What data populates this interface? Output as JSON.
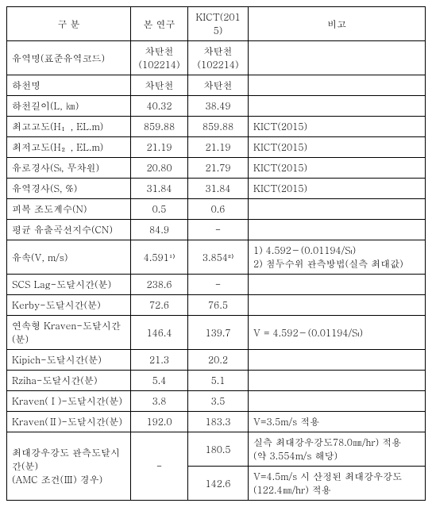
{
  "header": {
    "col1": "구    분",
    "col2": "본 연구",
    "col3": "KICT(2015)",
    "col4": "비고"
  },
  "rows": [
    {
      "label": "유역명(표준유역코드)",
      "v1": "차탄천\n(102214)",
      "v2": "차탄천\n(102214)",
      "note": ""
    },
    {
      "label": "하천명",
      "v1": "차탄천",
      "v2": "차탄천",
      "note": ""
    },
    {
      "label": "하천길이(L, ㎞)",
      "v1": "40.32",
      "v2": "38.49",
      "note": ""
    },
    {
      "label": "최고고도(H₁, EL.m)",
      "v1": "859.88",
      "v2": "859.88",
      "note": "KICT(2015)"
    },
    {
      "label": "최저고도(H₂, EL.m)",
      "v1": "21.19",
      "v2": "21.19",
      "note": "KICT(2015)"
    },
    {
      "label": "유로경사(Sₗ, 무차원)",
      "v1": "20.80",
      "v2": "21.79",
      "note": "KICT(2015)"
    },
    {
      "label": "유역경사(S, %)",
      "v1": "31.84",
      "v2": "31.84",
      "note": "KICT(2015)"
    },
    {
      "label": "피복 조도계수(N)",
      "v1": "0.5",
      "v2": "0.6",
      "note": ""
    },
    {
      "label": "평균 유출곡선지수(CN)",
      "v1": "84.9",
      "v2": "-",
      "note": ""
    },
    {
      "label": "유속(V, m/s)",
      "v1": "4.591¹⁾",
      "v2": "3.854²⁾",
      "note": "1) 4.592－(0.01194/Sₗ)\n2) 첨두수위 관측방법(실측 최대값)"
    },
    {
      "label": "SCS Lag-도달시간(분)",
      "v1": "238.6",
      "v2": "-",
      "note": ""
    },
    {
      "label": "Kerby-도달시간(분)",
      "v1": "72.6",
      "v2": "76.5",
      "note": ""
    },
    {
      "label": "연속형 Kraven-도달시간(분)",
      "v1": "146.4",
      "v2": "139.7",
      "note": "V = 4.592－(0.01194/Sₗ)"
    },
    {
      "label": "Kipich-도달시간(분)",
      "v1": "21.3",
      "v2": "20.2",
      "note": ""
    },
    {
      "label": "Rziha-도달시간(분)",
      "v1": "5.4",
      "v2": "5.1",
      "note": ""
    },
    {
      "label": "Kraven(Ⅰ)-도달시간(분)",
      "v1": "3.8",
      "v2": "3.5",
      "note": ""
    },
    {
      "label": "Kraven(Ⅱ)-도달시간(분)",
      "v1": "192.0",
      "v2": "183.3",
      "note": "V=3.5m/s 적용"
    }
  ],
  "lastRow": {
    "label": "최대강우강도 관측도달시간(분)\n(AMC 조건(Ⅲ) 경우)",
    "v1": "-",
    "v2a": "180.5",
    "v2b": "142.6",
    "noteA": "실측 최대강우강도78.0㎜/hr) 적용\n(약 3.554m/s 해당)",
    "noteB": "V=4.5m/s 시 산정된 최대강우강도\n(122.4㎜/hr) 적용"
  }
}
